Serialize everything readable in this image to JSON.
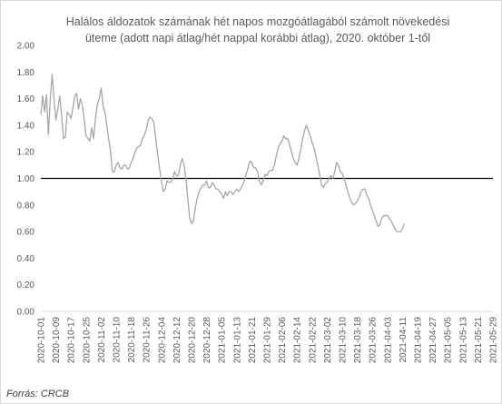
{
  "chart_data": {
    "type": "line",
    "title": "Halálos áldozatok számának hét napos mozgóátlagából számolt növekedési\nüteme (adott napi átlag/hét nappal korábbi átlag), 2020. október 1-től",
    "xlabel": "",
    "ylabel": "",
    "source": "Forrás: CRCB",
    "ylim": [
      0,
      2
    ],
    "y_ticks": [
      "0.00",
      "0.20",
      "0.40",
      "0.60",
      "0.80",
      "1.00",
      "1.20",
      "1.40",
      "1.60",
      "1.80",
      "2.00"
    ],
    "x_ticks": [
      "2020-10-01",
      "2020-10-09",
      "2020-10-17",
      "2020-10-25",
      "2020-11-02",
      "2020-11-10",
      "2020-11-18",
      "2020-11-26",
      "2020-12-04",
      "2020-12-12",
      "2020-12-20",
      "2020-12-28",
      "2021-01-05",
      "2021-01-13",
      "2021-01-21",
      "2021-01-29",
      "2021-02-06",
      "2021-02-14",
      "2021-02-22",
      "2021-03-02",
      "2021-03-10",
      "2021-03-18",
      "2021-03-26",
      "2021-04-03",
      "2021-04-11",
      "2021-04-19",
      "2021-04-27",
      "2021-05-05",
      "2021-05-13",
      "2021-05-21",
      "2021-05-29"
    ],
    "x_range": [
      "2020-10-01",
      "2021-05-29"
    ],
    "legend": "none",
    "grid": false,
    "reference_line": {
      "y": 1.0,
      "color": "#000000"
    },
    "series": [
      {
        "color": "#a6a6a6",
        "points": [
          [
            "2020-10-01",
            1.48
          ],
          [
            "2020-10-02",
            1.62
          ],
          [
            "2020-10-03",
            1.5
          ],
          [
            "2020-10-04",
            1.63
          ],
          [
            "2020-10-05",
            1.33
          ],
          [
            "2020-10-06",
            1.6
          ],
          [
            "2020-10-07",
            1.78
          ],
          [
            "2020-10-08",
            1.6
          ],
          [
            "2020-10-09",
            1.44
          ],
          [
            "2020-10-10",
            1.52
          ],
          [
            "2020-10-11",
            1.62
          ],
          [
            "2020-10-12",
            1.48
          ],
          [
            "2020-10-13",
            1.3
          ],
          [
            "2020-10-14",
            1.31
          ],
          [
            "2020-10-15",
            1.5
          ],
          [
            "2020-10-16",
            1.48
          ],
          [
            "2020-10-17",
            1.45
          ],
          [
            "2020-10-18",
            1.53
          ],
          [
            "2020-10-19",
            1.62
          ],
          [
            "2020-10-20",
            1.64
          ],
          [
            "2020-10-21",
            1.52
          ],
          [
            "2020-10-22",
            1.6
          ],
          [
            "2020-10-23",
            1.55
          ],
          [
            "2020-10-24",
            1.45
          ],
          [
            "2020-10-25",
            1.32
          ],
          [
            "2020-10-26",
            1.3
          ],
          [
            "2020-10-27",
            1.28
          ],
          [
            "2020-10-28",
            1.38
          ],
          [
            "2020-10-29",
            1.3
          ],
          [
            "2020-10-30",
            1.45
          ],
          [
            "2020-10-31",
            1.56
          ],
          [
            "2020-11-01",
            1.6
          ],
          [
            "2020-11-02",
            1.68
          ],
          [
            "2020-11-03",
            1.55
          ],
          [
            "2020-11-04",
            1.5
          ],
          [
            "2020-11-05",
            1.4
          ],
          [
            "2020-11-06",
            1.3
          ],
          [
            "2020-11-07",
            1.2
          ],
          [
            "2020-11-08",
            1.05
          ],
          [
            "2020-11-09",
            1.05
          ],
          [
            "2020-11-10",
            1.1
          ],
          [
            "2020-11-11",
            1.12
          ],
          [
            "2020-11-12",
            1.08
          ],
          [
            "2020-11-13",
            1.07
          ],
          [
            "2020-11-14",
            1.1
          ],
          [
            "2020-11-15",
            1.1
          ],
          [
            "2020-11-16",
            1.07
          ],
          [
            "2020-11-17",
            1.08
          ],
          [
            "2020-11-18",
            1.12
          ],
          [
            "2020-11-19",
            1.15
          ],
          [
            "2020-11-20",
            1.2
          ],
          [
            "2020-11-21",
            1.23
          ],
          [
            "2020-11-22",
            1.24
          ],
          [
            "2020-11-23",
            1.25
          ],
          [
            "2020-11-24",
            1.3
          ],
          [
            "2020-11-25",
            1.33
          ],
          [
            "2020-11-26",
            1.37
          ],
          [
            "2020-11-27",
            1.44
          ],
          [
            "2020-11-28",
            1.46
          ],
          [
            "2020-11-29",
            1.45
          ],
          [
            "2020-11-30",
            1.42
          ],
          [
            "2020-12-01",
            1.3
          ],
          [
            "2020-12-02",
            1.18
          ],
          [
            "2020-12-03",
            1.08
          ],
          [
            "2020-12-04",
            0.98
          ],
          [
            "2020-12-05",
            0.9
          ],
          [
            "2020-12-06",
            0.92
          ],
          [
            "2020-12-07",
            0.98
          ],
          [
            "2020-12-08",
            0.97
          ],
          [
            "2020-12-09",
            0.97
          ],
          [
            "2020-12-10",
            1.0
          ],
          [
            "2020-12-11",
            1.05
          ],
          [
            "2020-12-12",
            1.02
          ],
          [
            "2020-12-13",
            1.02
          ],
          [
            "2020-12-14",
            1.1
          ],
          [
            "2020-12-15",
            1.15
          ],
          [
            "2020-12-16",
            1.1
          ],
          [
            "2020-12-17",
            1.0
          ],
          [
            "2020-12-18",
            0.85
          ],
          [
            "2020-12-19",
            0.7
          ],
          [
            "2020-12-20",
            0.66
          ],
          [
            "2020-12-21",
            0.68
          ],
          [
            "2020-12-22",
            0.78
          ],
          [
            "2020-12-23",
            0.85
          ],
          [
            "2020-12-24",
            0.9
          ],
          [
            "2020-12-25",
            0.93
          ],
          [
            "2020-12-26",
            0.95
          ],
          [
            "2020-12-27",
            0.95
          ],
          [
            "2020-12-28",
            0.98
          ],
          [
            "2020-12-29",
            0.93
          ],
          [
            "2020-12-30",
            0.93
          ],
          [
            "2020-12-31",
            0.97
          ],
          [
            "2021-01-01",
            0.95
          ],
          [
            "2021-01-02",
            0.92
          ],
          [
            "2021-01-03",
            0.92
          ],
          [
            "2021-01-04",
            0.9
          ],
          [
            "2021-01-05",
            0.88
          ],
          [
            "2021-01-06",
            0.85
          ],
          [
            "2021-01-07",
            0.9
          ],
          [
            "2021-01-08",
            0.87
          ],
          [
            "2021-01-09",
            0.9
          ],
          [
            "2021-01-10",
            0.9
          ],
          [
            "2021-01-11",
            0.88
          ],
          [
            "2021-01-12",
            0.9
          ],
          [
            "2021-01-13",
            0.92
          ],
          [
            "2021-01-14",
            0.9
          ],
          [
            "2021-01-15",
            0.92
          ],
          [
            "2021-01-16",
            0.95
          ],
          [
            "2021-01-17",
            0.98
          ],
          [
            "2021-01-18",
            1.03
          ],
          [
            "2021-01-19",
            1.08
          ],
          [
            "2021-01-20",
            1.13
          ],
          [
            "2021-01-21",
            1.12
          ],
          [
            "2021-01-22",
            1.08
          ],
          [
            "2021-01-23",
            1.08
          ],
          [
            "2021-01-24",
            1.05
          ],
          [
            "2021-01-25",
            0.98
          ],
          [
            "2021-01-26",
            0.95
          ],
          [
            "2021-01-27",
            0.98
          ],
          [
            "2021-01-28",
            1.03
          ],
          [
            "2021-01-29",
            1.02
          ],
          [
            "2021-01-30",
            1.05
          ],
          [
            "2021-01-31",
            1.06
          ],
          [
            "2021-02-01",
            1.06
          ],
          [
            "2021-02-02",
            1.1
          ],
          [
            "2021-02-03",
            1.17
          ],
          [
            "2021-02-04",
            1.23
          ],
          [
            "2021-02-05",
            1.26
          ],
          [
            "2021-02-06",
            1.28
          ],
          [
            "2021-02-07",
            1.32
          ],
          [
            "2021-02-08",
            1.3
          ],
          [
            "2021-02-09",
            1.3
          ],
          [
            "2021-02-10",
            1.26
          ],
          [
            "2021-02-11",
            1.2
          ],
          [
            "2021-02-12",
            1.15
          ],
          [
            "2021-02-13",
            1.12
          ],
          [
            "2021-02-14",
            1.1
          ],
          [
            "2021-02-15",
            1.15
          ],
          [
            "2021-02-16",
            1.22
          ],
          [
            "2021-02-17",
            1.3
          ],
          [
            "2021-02-18",
            1.36
          ],
          [
            "2021-02-19",
            1.4
          ],
          [
            "2021-02-20",
            1.36
          ],
          [
            "2021-02-21",
            1.32
          ],
          [
            "2021-02-22",
            1.27
          ],
          [
            "2021-02-23",
            1.23
          ],
          [
            "2021-02-24",
            1.17
          ],
          [
            "2021-02-25",
            1.1
          ],
          [
            "2021-02-26",
            1.03
          ],
          [
            "2021-02-27",
            0.95
          ],
          [
            "2021-02-28",
            0.93
          ],
          [
            "2021-03-01",
            0.96
          ],
          [
            "2021-03-02",
            0.97
          ],
          [
            "2021-03-03",
            1.0
          ],
          [
            "2021-03-04",
            1.02
          ],
          [
            "2021-03-05",
            1.0
          ],
          [
            "2021-03-06",
            1.05
          ],
          [
            "2021-03-07",
            1.12
          ],
          [
            "2021-03-08",
            1.1
          ],
          [
            "2021-03-09",
            1.05
          ],
          [
            "2021-03-10",
            1.04
          ],
          [
            "2021-03-11",
            1.0
          ],
          [
            "2021-03-12",
            0.95
          ],
          [
            "2021-03-13",
            0.9
          ],
          [
            "2021-03-14",
            0.85
          ],
          [
            "2021-03-15",
            0.82
          ],
          [
            "2021-03-16",
            0.8
          ],
          [
            "2021-03-17",
            0.81
          ],
          [
            "2021-03-18",
            0.83
          ],
          [
            "2021-03-19",
            0.86
          ],
          [
            "2021-03-20",
            0.9
          ],
          [
            "2021-03-21",
            0.92
          ],
          [
            "2021-03-22",
            0.92
          ],
          [
            "2021-03-23",
            0.88
          ],
          [
            "2021-03-24",
            0.85
          ],
          [
            "2021-03-25",
            0.8
          ],
          [
            "2021-03-26",
            0.76
          ],
          [
            "2021-03-27",
            0.72
          ],
          [
            "2021-03-28",
            0.68
          ],
          [
            "2021-03-29",
            0.64
          ],
          [
            "2021-03-30",
            0.65
          ],
          [
            "2021-03-31",
            0.7
          ],
          [
            "2021-04-01",
            0.72
          ],
          [
            "2021-04-02",
            0.72
          ],
          [
            "2021-04-03",
            0.72
          ],
          [
            "2021-04-04",
            0.7
          ],
          [
            "2021-04-05",
            0.68
          ],
          [
            "2021-04-06",
            0.65
          ],
          [
            "2021-04-07",
            0.62
          ],
          [
            "2021-04-08",
            0.6
          ],
          [
            "2021-04-09",
            0.6
          ],
          [
            "2021-04-10",
            0.6
          ],
          [
            "2021-04-11",
            0.62
          ],
          [
            "2021-04-12",
            0.66
          ]
        ]
      }
    ]
  }
}
